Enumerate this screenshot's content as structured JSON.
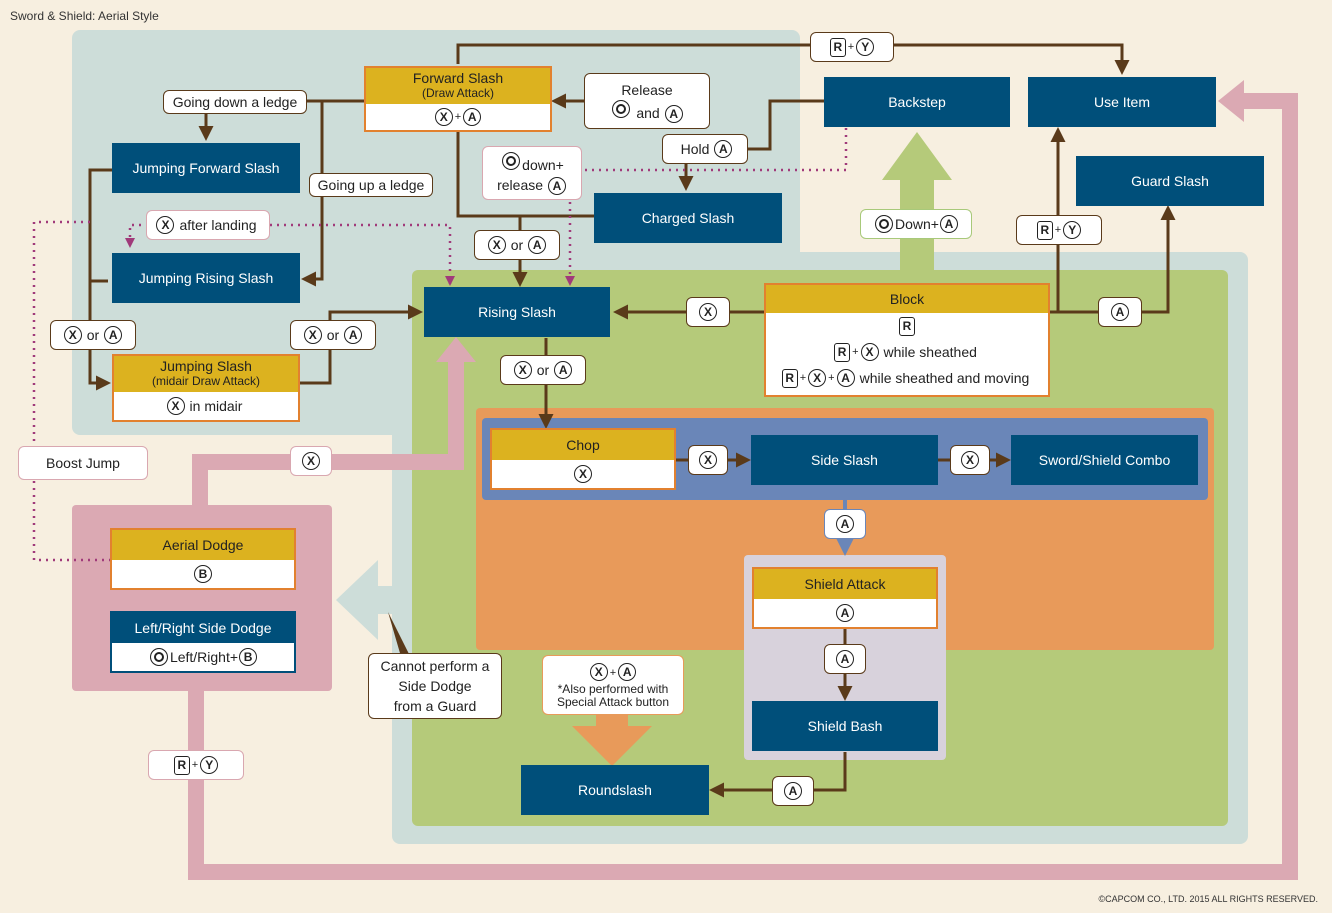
{
  "title": "Sword & Shield: Aerial Style",
  "copyright": "©CAPCOM CO., LTD. 2015 ALL RIGHTS RESERVED.",
  "colors": {
    "background": "#f7efe0",
    "blue_zone": "#cdddd9",
    "green_zone": "#b5ca7a",
    "orange_zone": "#e89a5a",
    "combo_zone": "#6a86b8",
    "grey_zone": "#d8d2dc",
    "pink": "#dba9b3",
    "node": "#004f7a",
    "header_yellow": "#dcb21f",
    "arrow_brown": "#5a3a1a"
  },
  "icons": {
    "x_button": "X",
    "a_button": "A",
    "b_button": "B",
    "y_button": "Y",
    "r_button": "R",
    "stick": "stick-icon"
  },
  "nodes": {
    "forward_slash": {
      "title": "Forward Slash",
      "subtitle": "(Draw Attack)"
    },
    "backstep": "Backstep",
    "use_item": "Use Item",
    "guard_slash": "Guard Slash",
    "jumping_forward_slash": "Jumping Forward Slash",
    "charged_slash": "Charged Slash",
    "jumping_rising_slash": "Jumping Rising Slash",
    "rising_slash": "Rising Slash",
    "block": {
      "title": "Block",
      "line2": "while sheathed",
      "line3": "while sheathed and moving"
    },
    "jumping_slash": {
      "title": "Jumping Slash",
      "subtitle": "(midair Draw Attack)",
      "input": "in midair"
    },
    "chop": "Chop",
    "side_slash": "Side Slash",
    "sword_shield_combo": "Sword/Shield Combo",
    "aerial_dodge": "Aerial Dodge",
    "left_right_side_dodge": {
      "title": "Left/Right Side Dodge",
      "input": "Left/Right+"
    },
    "shield_attack": "Shield Attack",
    "shield_bash": "Shield Bash",
    "roundslash": "Roundslash"
  },
  "labels": {
    "going_down_a_ledge": "Going down a ledge",
    "going_up_a_ledge": "Going up a ledge",
    "release": "Release",
    "and": "and",
    "hold": "Hold",
    "down_plus": "down+",
    "release_lower": "release",
    "after_landing": "after landing",
    "or": "or",
    "down_plus_caps": "Down+",
    "boost_jump": "Boost Jump",
    "cannot_side_dodge": "Cannot perform a\nSide Dodge\nfrom a Guard",
    "cannot_line1": "Cannot perform a",
    "cannot_line2": "Side Dodge",
    "cannot_line3": "from a Guard",
    "special_note_line1": "*Also performed with",
    "special_note_line2": "Special Attack button"
  }
}
